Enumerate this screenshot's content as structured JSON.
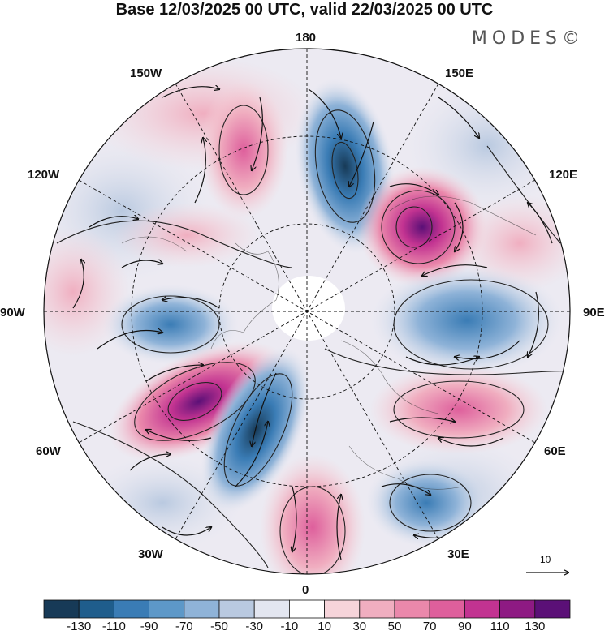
{
  "header": {
    "title": "Base 12/03/2025 00 UTC, valid 22/03/2025 00 UTC"
  },
  "brand": "MODES©",
  "map": {
    "projection": "north-polar-stereographic",
    "longitude_labels": {
      "top": "180",
      "top_left": "150W",
      "top_right": "150E",
      "upper_left": "120W",
      "upper_right": "120E",
      "left": "90W",
      "right": "90E",
      "lower_left": "60W",
      "lower_right": "60E",
      "bottom_left": "30W",
      "bottom_right": "30E",
      "bottom": "0"
    },
    "reference_vector": "10",
    "colors": {
      "neg_strong": "#1f4e79",
      "neg_mid": "#4a86b8",
      "neg_weak": "#b9c9de",
      "pos_weak": "#f3c6cf",
      "pos_mid": "#e27aa6",
      "pos_strong": "#8a1f7a"
    }
  },
  "colorbar": {
    "ticks": [
      "-130",
      "-110",
      "-90",
      "-70",
      "-50",
      "-30",
      "-10",
      "10",
      "30",
      "50",
      "70",
      "90",
      "110",
      "130"
    ],
    "colors": [
      "#173a57",
      "#1f5d8c",
      "#3a7cb5",
      "#5d98c8",
      "#8fb3d8",
      "#b9c9e0",
      "#e3e6f0",
      "#ffffff",
      "#f6d4da",
      "#f0aec0",
      "#ea88ab",
      "#de5f9c",
      "#c23391",
      "#8e1a83",
      "#5b1077"
    ]
  }
}
